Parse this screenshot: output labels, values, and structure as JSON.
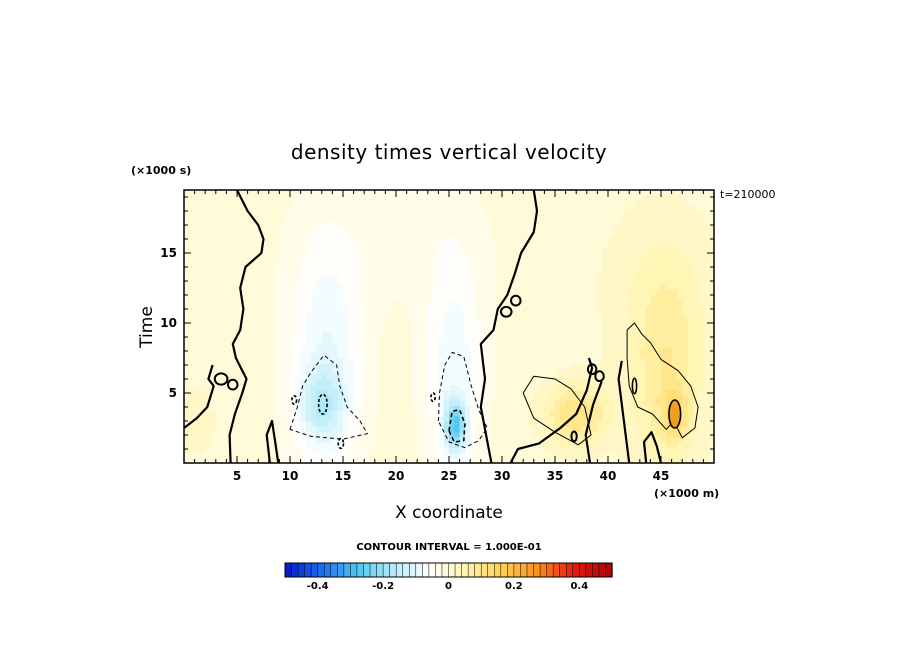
{
  "chart_data": {
    "type": "heatmap",
    "title": "density times vertical velocity",
    "xlabel": "X coordinate",
    "ylabel": "Time",
    "x_unit": "(×1000 m)",
    "y_unit": "(×1000 s)",
    "timestamp": "t=210000",
    "xlim": [
      0,
      50
    ],
    "ylim": [
      0,
      19.5
    ],
    "x_ticks": [
      5,
      10,
      15,
      20,
      25,
      30,
      35,
      40,
      45
    ],
    "y_ticks": [
      5,
      10,
      15
    ],
    "grid": false,
    "contour_interval_text": "CONTOUR INTERVAL = 1.000E-01",
    "contour_interval": 0.1,
    "colorbar": {
      "min": -0.5,
      "max": 0.5,
      "labels": [
        "-0.4",
        "-0.2",
        "0",
        "0.2",
        "0.4"
      ],
      "label_values": [
        -0.4,
        -0.2,
        0,
        0.2,
        0.4
      ],
      "colors": [
        "#0018c8",
        "#1e6cf0",
        "#52c6f0",
        "#b8ecf8",
        "#ffffff",
        "#fff4b0",
        "#ffd050",
        "#ff8a1c",
        "#e01810",
        "#a80808"
      ]
    },
    "features": [
      {
        "sign": "negative",
        "x": 13.5,
        "y": 7.0,
        "sx": 3.5,
        "sy": 9.0,
        "amp": -0.09
      },
      {
        "sign": "negative",
        "x": 13.0,
        "y": 4.2,
        "sx": 2.0,
        "sy": 2.4,
        "amp": -0.1
      },
      {
        "sign": "negative",
        "x": 25.5,
        "y": 6.5,
        "sx": 2.8,
        "sy": 8.5,
        "amp": -0.08
      },
      {
        "sign": "negative",
        "x": 25.6,
        "y": 2.7,
        "sx": 1.0,
        "sy": 1.7,
        "amp": -0.22
      },
      {
        "sign": "negative",
        "x": 20.0,
        "y": 16.0,
        "sx": 10.0,
        "sy": 5.0,
        "amp": -0.02
      },
      {
        "sign": "positive",
        "x": 37.0,
        "y": 3.5,
        "sx": 3.0,
        "sy": 2.3,
        "amp": 0.11
      },
      {
        "sign": "positive",
        "x": 45.5,
        "y": 6.0,
        "sx": 3.5,
        "sy": 7.0,
        "amp": 0.08
      },
      {
        "sign": "positive",
        "x": 46.3,
        "y": 3.5,
        "sx": 1.2,
        "sy": 1.8,
        "amp": 0.08
      },
      {
        "sign": "positive",
        "x": 45.0,
        "y": 13.0,
        "sx": 6.0,
        "sy": 6.0,
        "amp": 0.03
      },
      {
        "sign": "positive",
        "x": 1.0,
        "y": 3.0,
        "sx": 2.0,
        "sy": 2.5,
        "amp": 0.03
      }
    ],
    "zero_contour_paths": [
      [
        [
          5.0,
          19.5
        ],
        [
          6.0,
          18.0
        ],
        [
          7.0,
          17.0
        ],
        [
          7.5,
          16.0
        ],
        [
          7.3,
          15.0
        ],
        [
          5.8,
          14.0
        ],
        [
          5.3,
          12.5
        ],
        [
          5.6,
          11.0
        ],
        [
          5.3,
          9.5
        ],
        [
          4.6,
          8.5
        ],
        [
          4.9,
          7.5
        ],
        [
          5.9,
          6.0
        ],
        [
          5.5,
          5.0
        ],
        [
          4.8,
          3.5
        ],
        [
          4.3,
          2.0
        ],
        [
          4.4,
          0.0
        ]
      ],
      [
        [
          33.0,
          19.5
        ],
        [
          33.3,
          18.0
        ],
        [
          33.0,
          16.5
        ],
        [
          31.8,
          15.0
        ],
        [
          31.2,
          13.5
        ],
        [
          30.5,
          12.0
        ],
        [
          29.6,
          11.0
        ],
        [
          29.2,
          9.5
        ],
        [
          28.0,
          8.5
        ],
        [
          28.4,
          6.0
        ],
        [
          28.0,
          4.0
        ],
        [
          28.5,
          2.0
        ],
        [
          29.0,
          0.0
        ]
      ],
      [
        [
          8.1,
          0.0
        ],
        [
          7.8,
          2.0
        ],
        [
          8.3,
          3.0
        ],
        [
          8.6,
          1.5
        ],
        [
          8.9,
          0.0
        ]
      ],
      [
        [
          0.0,
          2.5
        ],
        [
          1.2,
          3.2
        ],
        [
          2.2,
          4.0
        ],
        [
          2.8,
          5.5
        ],
        [
          2.3,
          6.0
        ],
        [
          2.7,
          7.0
        ]
      ],
      [
        [
          30.8,
          0.0
        ],
        [
          31.5,
          1.0
        ],
        [
          33.5,
          1.4
        ],
        [
          35.5,
          2.5
        ],
        [
          37.0,
          3.5
        ],
        [
          38.0,
          5.2
        ],
        [
          38.5,
          6.8
        ],
        [
          38.2,
          7.5
        ]
      ],
      [
        [
          38.3,
          0.0
        ],
        [
          37.9,
          2.0
        ],
        [
          38.6,
          4.2
        ],
        [
          39.4,
          5.8
        ]
      ],
      [
        [
          42.0,
          0.0
        ],
        [
          41.5,
          3.0
        ],
        [
          41.0,
          6.0
        ],
        [
          41.3,
          7.3
        ]
      ],
      [
        [
          43.6,
          0.0
        ],
        [
          43.4,
          1.5
        ],
        [
          44.1,
          2.2
        ],
        [
          44.6,
          1.2
        ],
        [
          45.0,
          0.0
        ]
      ]
    ],
    "zero_contour_loops": [
      {
        "x": 3.5,
        "y": 6.0,
        "rx": 0.6,
        "ry": 0.4
      },
      {
        "x": 4.6,
        "y": 5.6,
        "rx": 0.45,
        "ry": 0.35
      },
      {
        "x": 30.4,
        "y": 10.8,
        "rx": 0.5,
        "ry": 0.35
      },
      {
        "x": 31.3,
        "y": 11.6,
        "rx": 0.45,
        "ry": 0.35
      },
      {
        "x": 38.5,
        "y": 6.7,
        "rx": 0.4,
        "ry": 0.35
      },
      {
        "x": 39.2,
        "y": 6.2,
        "rx": 0.4,
        "ry": 0.35
      },
      {
        "x": 36.8,
        "y": 1.9,
        "rx": 0.25,
        "ry": 0.35
      }
    ],
    "contour_paths": [
      {
        "level": -0.1,
        "style": "dashed",
        "points": [
          [
            10.0,
            2.4
          ],
          [
            10.7,
            4.0
          ],
          [
            11.2,
            5.5
          ],
          [
            12.0,
            6.5
          ],
          [
            13.2,
            7.7
          ],
          [
            14.4,
            7.0
          ],
          [
            14.7,
            5.5
          ],
          [
            15.4,
            4.0
          ],
          [
            16.6,
            3.0
          ],
          [
            17.3,
            2.1
          ],
          [
            15.0,
            1.7
          ],
          [
            12.0,
            1.9
          ],
          [
            10.0,
            2.4
          ]
        ]
      },
      {
        "level": -0.1,
        "style": "dashed",
        "points": [
          [
            24.0,
            3.0
          ],
          [
            24.1,
            5.0
          ],
          [
            24.6,
            7.0
          ],
          [
            25.3,
            7.9
          ],
          [
            26.4,
            7.6
          ],
          [
            27.1,
            5.5
          ],
          [
            27.8,
            3.8
          ],
          [
            28.6,
            2.5
          ],
          [
            27.8,
            1.6
          ],
          [
            26.5,
            1.1
          ],
          [
            25.0,
            1.5
          ],
          [
            24.0,
            3.0
          ]
        ]
      },
      {
        "level": -0.2,
        "style": "dashed",
        "points": [
          [
            25.0,
            2.3
          ],
          [
            25.3,
            3.7
          ],
          [
            26.0,
            3.8
          ],
          [
            26.5,
            2.8
          ],
          [
            26.4,
            1.6
          ],
          [
            25.5,
            1.5
          ],
          [
            25.0,
            2.3
          ]
        ]
      },
      {
        "level": 0.1,
        "style": "solid",
        "points": [
          [
            32.0,
            5.0
          ],
          [
            33.0,
            6.2
          ],
          [
            35.0,
            6.0
          ],
          [
            36.5,
            5.3
          ],
          [
            37.8,
            4.0
          ],
          [
            38.4,
            2.0
          ],
          [
            37.2,
            1.3
          ],
          [
            35.0,
            2.2
          ],
          [
            33.0,
            3.2
          ],
          [
            32.0,
            5.0
          ]
        ]
      },
      {
        "level": 0.1,
        "style": "solid",
        "points": [
          [
            41.8,
            9.5
          ],
          [
            42.5,
            10.0
          ],
          [
            43.2,
            9.2
          ],
          [
            44.0,
            8.6
          ],
          [
            45.0,
            7.4
          ],
          [
            46.6,
            6.6
          ],
          [
            47.8,
            5.5
          ],
          [
            48.5,
            4.0
          ],
          [
            48.2,
            2.5
          ],
          [
            47.0,
            1.8
          ],
          [
            46.2,
            3.0
          ],
          [
            45.5,
            2.4
          ],
          [
            44.2,
            3.5
          ],
          [
            42.8,
            4.0
          ],
          [
            42.0,
            5.5
          ],
          [
            41.8,
            7.5
          ],
          [
            41.8,
            9.5
          ]
        ]
      }
    ],
    "local_extrema_loops": [
      {
        "sign": "negative",
        "x": 13.1,
        "y": 4.2,
        "rx": 0.4,
        "ry": 0.7
      },
      {
        "sign": "negative",
        "x": 10.4,
        "y": 4.5,
        "rx": 0.22,
        "ry": 0.3
      },
      {
        "sign": "negative",
        "x": 14.8,
        "y": 1.4,
        "rx": 0.25,
        "ry": 0.35
      },
      {
        "sign": "negative",
        "x": 23.5,
        "y": 4.7,
        "rx": 0.2,
        "ry": 0.3
      },
      {
        "sign": "positive",
        "x": 42.5,
        "y": 5.5,
        "rx": 0.2,
        "ry": 0.55
      },
      {
        "sign": "positive",
        "x": 46.3,
        "y": 3.5,
        "rx": 0.55,
        "ry": 1.0
      }
    ]
  }
}
